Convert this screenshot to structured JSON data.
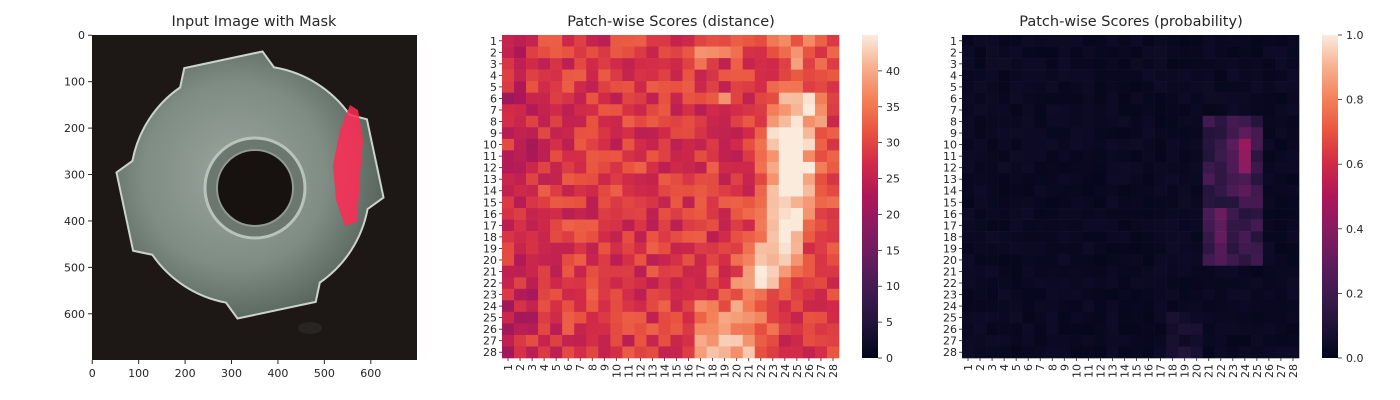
{
  "chart_data": [
    {
      "type": "image",
      "title": "Input Image with Mask",
      "xlim": [
        0,
        700
      ],
      "ylim": [
        0,
        700
      ],
      "xticks": [
        "0",
        "100",
        "200",
        "300",
        "400",
        "500",
        "600"
      ],
      "yticks": [
        "0",
        "100",
        "200",
        "300",
        "400",
        "500",
        "600"
      ],
      "image_description": "metal tee nut photographed on dark background, highlighted defect mask region in red",
      "mask_color": "#ff2a55"
    },
    {
      "type": "heatmap",
      "title": "Patch-wise Scores (distance)",
      "rows": 28,
      "cols": 28,
      "x_tick_labels": [
        "1",
        "2",
        "3",
        "4",
        "5",
        "6",
        "7",
        "8",
        "9",
        "10",
        "11",
        "12",
        "13",
        "14",
        "15",
        "16",
        "17",
        "18",
        "19",
        "20",
        "21",
        "22",
        "23",
        "24",
        "25",
        "26",
        "27",
        "28"
      ],
      "y_tick_labels": [
        "1",
        "2",
        "3",
        "4",
        "5",
        "6",
        "7",
        "8",
        "9",
        "10",
        "11",
        "12",
        "13",
        "14",
        "15",
        "16",
        "17",
        "18",
        "19",
        "20",
        "21",
        "22",
        "23",
        "24",
        "25",
        "26",
        "27",
        "28"
      ],
      "colorbar": {
        "min": 0,
        "max": 45,
        "ticks": [
          "0",
          "5",
          "10",
          "15",
          "20",
          "25",
          "30",
          "35",
          "40"
        ],
        "tick_values": [
          0,
          5,
          10,
          15,
          20,
          25,
          30,
          35,
          40
        ]
      },
      "colormap": "rocket"
    },
    {
      "type": "heatmap",
      "title": "Patch-wise Scores (probability)",
      "rows": 28,
      "cols": 28,
      "x_tick_labels": [
        "1",
        "2",
        "3",
        "4",
        "5",
        "6",
        "7",
        "8",
        "9",
        "10",
        "11",
        "12",
        "13",
        "14",
        "15",
        "16",
        "17",
        "18",
        "19",
        "20",
        "21",
        "22",
        "23",
        "24",
        "25",
        "26",
        "27",
        "28"
      ],
      "y_tick_labels": [
        "1",
        "2",
        "3",
        "4",
        "5",
        "6",
        "7",
        "8",
        "9",
        "10",
        "11",
        "12",
        "13",
        "14",
        "15",
        "16",
        "17",
        "18",
        "19",
        "20",
        "21",
        "22",
        "23",
        "24",
        "25",
        "26",
        "27",
        "28"
      ],
      "colorbar": {
        "min": 0,
        "max": 1,
        "ticks": [
          "0.0",
          "0.2",
          "0.4",
          "0.6",
          "0.8",
          "1.0"
        ],
        "tick_values": [
          0,
          0.2,
          0.4,
          0.6,
          0.8,
          1.0
        ]
      },
      "colormap": "rocket"
    }
  ]
}
